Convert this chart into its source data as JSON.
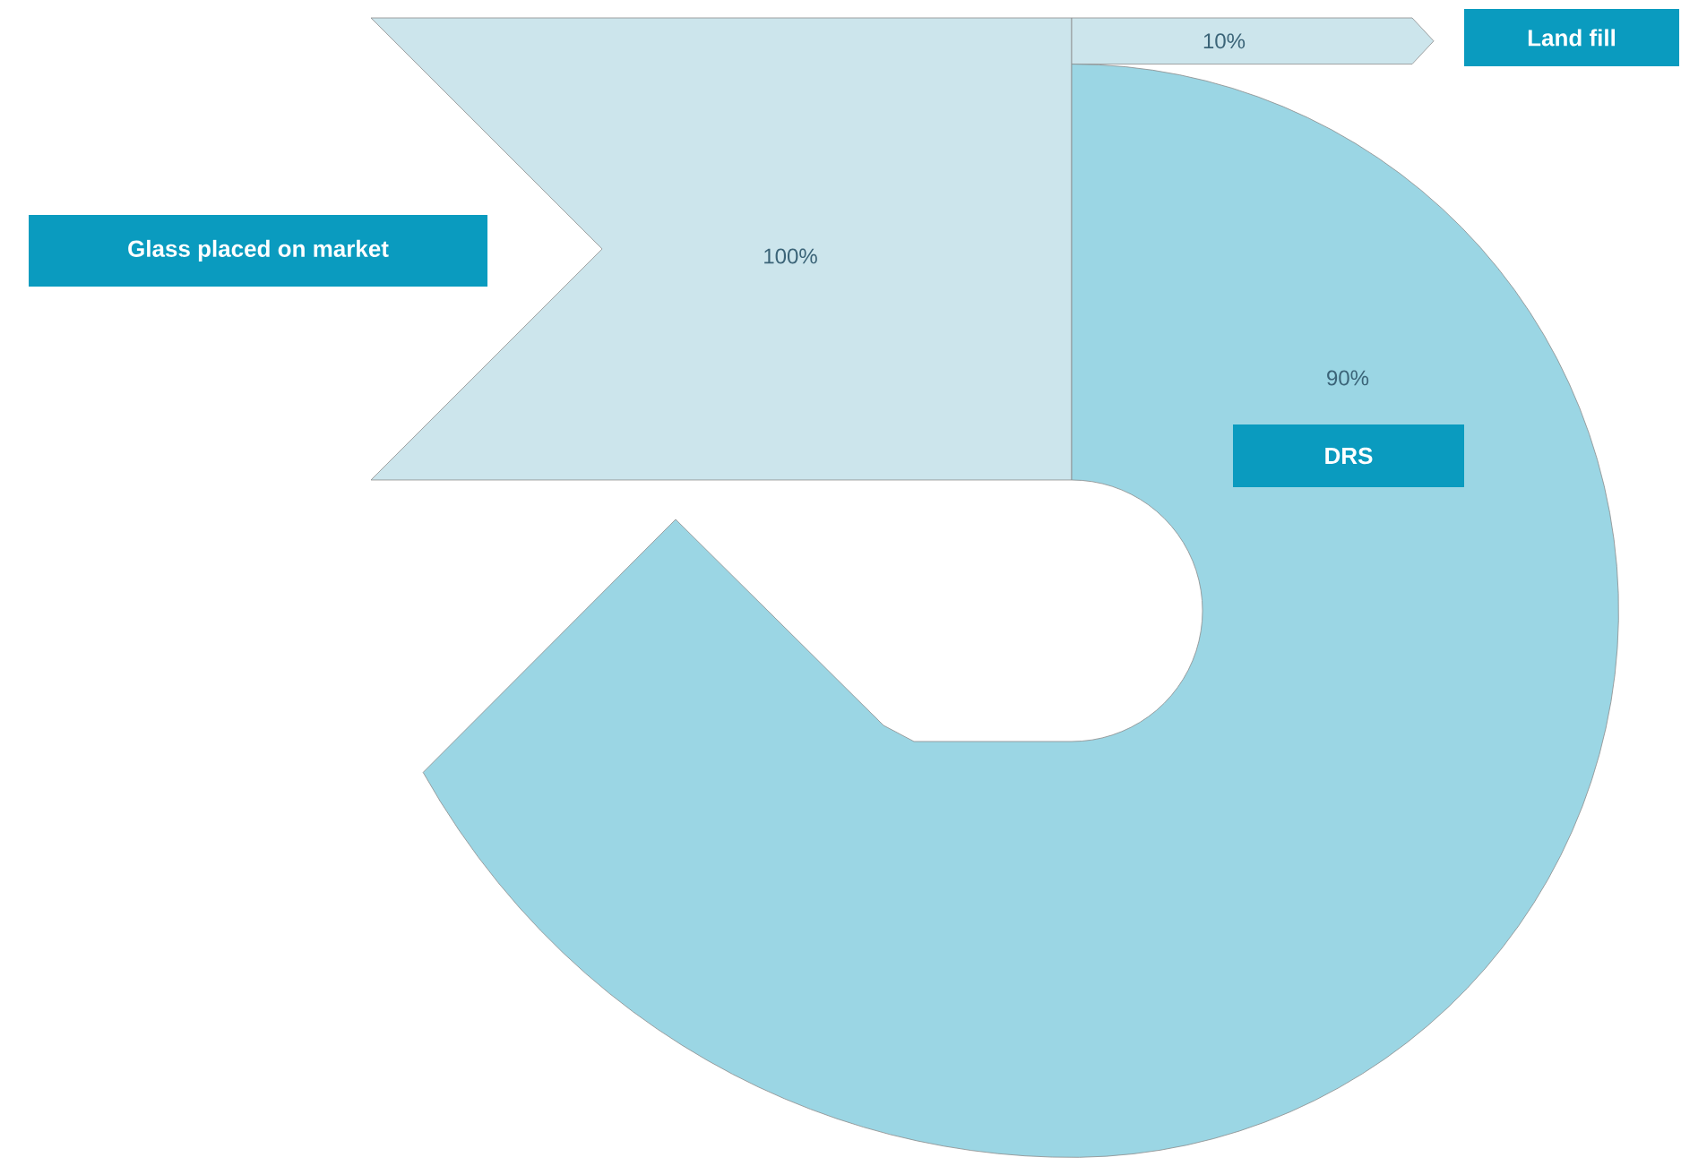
{
  "chart_data": {
    "type": "other",
    "categories": [
      "Glass placed on market",
      "DRS",
      "Land fill"
    ],
    "values": [
      100,
      90,
      10
    ],
    "value_labels": [
      "100%",
      "90%",
      "10%"
    ]
  }
}
